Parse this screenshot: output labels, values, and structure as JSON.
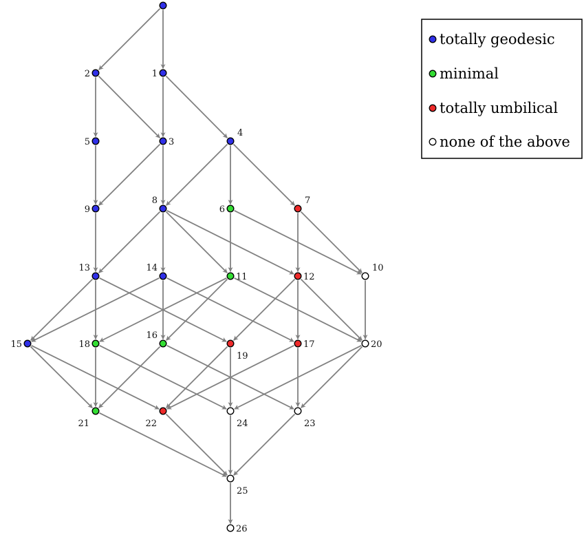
{
  "colors": {
    "totally_geodesic": "#3030e8",
    "minimal": "#33dd33",
    "totally_umbilical": "#ee2a2a",
    "none": "#ffffff",
    "edge": "#808080",
    "node_stroke": "#000000"
  },
  "legend": {
    "items": [
      {
        "key": "totally_geodesic",
        "label": "totally geodesic"
      },
      {
        "key": "minimal",
        "label": "minimal"
      },
      {
        "key": "totally_umbilical",
        "label": "totally umbilical"
      },
      {
        "key": "none",
        "label": "none of the above"
      }
    ]
  },
  "nodes": [
    {
      "id": "0",
      "type": "totally_geodesic"
    },
    {
      "id": "1",
      "type": "totally_geodesic"
    },
    {
      "id": "2",
      "type": "totally_geodesic"
    },
    {
      "id": "3",
      "type": "totally_geodesic"
    },
    {
      "id": "4",
      "type": "totally_geodesic"
    },
    {
      "id": "5",
      "type": "totally_geodesic"
    },
    {
      "id": "6",
      "type": "minimal"
    },
    {
      "id": "7",
      "type": "totally_umbilical"
    },
    {
      "id": "8",
      "type": "totally_geodesic"
    },
    {
      "id": "9",
      "type": "totally_geodesic"
    },
    {
      "id": "10",
      "type": "none"
    },
    {
      "id": "11",
      "type": "minimal"
    },
    {
      "id": "12",
      "type": "totally_umbilical"
    },
    {
      "id": "13",
      "type": "totally_geodesic"
    },
    {
      "id": "14",
      "type": "totally_geodesic"
    },
    {
      "id": "15",
      "type": "totally_geodesic"
    },
    {
      "id": "16",
      "type": "minimal"
    },
    {
      "id": "17",
      "type": "totally_umbilical"
    },
    {
      "id": "18",
      "type": "minimal"
    },
    {
      "id": "19",
      "type": "totally_umbilical"
    },
    {
      "id": "20",
      "type": "none"
    },
    {
      "id": "21",
      "type": "minimal"
    },
    {
      "id": "22",
      "type": "totally_umbilical"
    },
    {
      "id": "23",
      "type": "none"
    },
    {
      "id": "24",
      "type": "none"
    },
    {
      "id": "25",
      "type": "none"
    },
    {
      "id": "26",
      "type": "none"
    }
  ],
  "edges": [
    [
      "0",
      "2"
    ],
    [
      "0",
      "1"
    ],
    [
      "2",
      "5"
    ],
    [
      "2",
      "3"
    ],
    [
      "1",
      "3"
    ],
    [
      "1",
      "4"
    ],
    [
      "5",
      "9"
    ],
    [
      "3",
      "9"
    ],
    [
      "3",
      "8"
    ],
    [
      "4",
      "8"
    ],
    [
      "4",
      "6"
    ],
    [
      "4",
      "7"
    ],
    [
      "9",
      "13"
    ],
    [
      "8",
      "13"
    ],
    [
      "8",
      "14"
    ],
    [
      "8",
      "11"
    ],
    [
      "8",
      "12"
    ],
    [
      "6",
      "11"
    ],
    [
      "6",
      "10"
    ],
    [
      "7",
      "12"
    ],
    [
      "7",
      "10"
    ],
    [
      "13",
      "15"
    ],
    [
      "13",
      "18"
    ],
    [
      "13",
      "19"
    ],
    [
      "14",
      "15"
    ],
    [
      "14",
      "16"
    ],
    [
      "14",
      "17"
    ],
    [
      "11",
      "18"
    ],
    [
      "11",
      "16"
    ],
    [
      "11",
      "20"
    ],
    [
      "12",
      "19"
    ],
    [
      "12",
      "17"
    ],
    [
      "12",
      "20"
    ],
    [
      "10",
      "20"
    ],
    [
      "15",
      "21"
    ],
    [
      "15",
      "22"
    ],
    [
      "18",
      "21"
    ],
    [
      "18",
      "24"
    ],
    [
      "16",
      "21"
    ],
    [
      "16",
      "23"
    ],
    [
      "19",
      "22"
    ],
    [
      "19",
      "24"
    ],
    [
      "17",
      "22"
    ],
    [
      "17",
      "23"
    ],
    [
      "20",
      "24"
    ],
    [
      "20",
      "23"
    ],
    [
      "21",
      "25"
    ],
    [
      "22",
      "25"
    ],
    [
      "24",
      "25"
    ],
    [
      "23",
      "25"
    ],
    [
      "25",
      "26"
    ]
  ]
}
